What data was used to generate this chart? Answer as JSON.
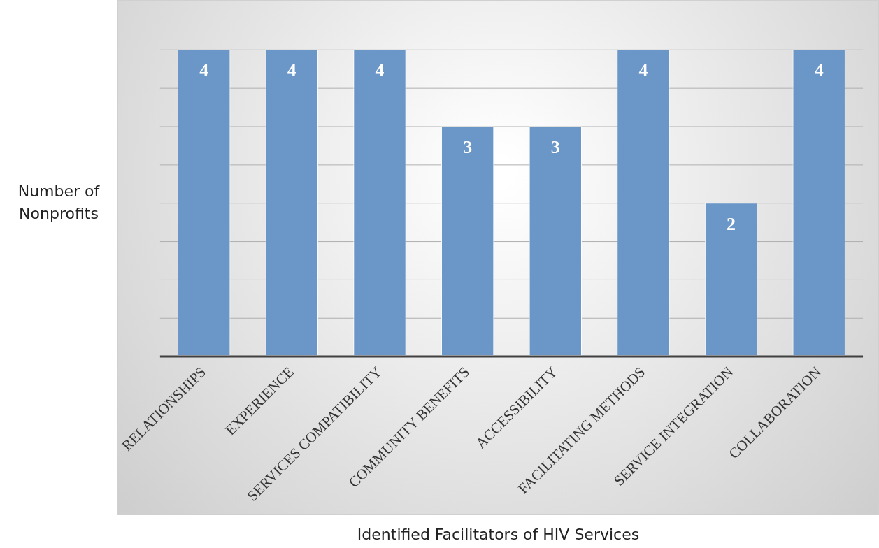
{
  "chart_data": {
    "type": "bar",
    "xlabel": "Identified Facilitators of HIV Services",
    "ylabel": "Number of Nonprofits",
    "categories": [
      "RELATIONSHIPS",
      "EXPERIENCE",
      "SERVICES COMPATIBILITY",
      "COMMUNITY BENEFITS",
      "ACCESSIBILITY",
      "FACILITATING METHODS",
      "SERVICE INTEGRATION",
      "COLLABORATION"
    ],
    "values": [
      4,
      4,
      4,
      3,
      3,
      4,
      2,
      4
    ],
    "color": "#6a96c8",
    "tick_labels": "x",
    "grid": "y",
    "legend": false,
    "data_labels": true
  }
}
